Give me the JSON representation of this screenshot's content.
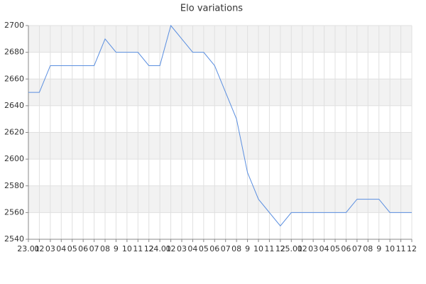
{
  "chart_data": {
    "type": "line",
    "title": "Elo variations",
    "categories": [
      "23.01",
      "02",
      "03",
      "04",
      "05",
      "06",
      "07",
      "08",
      "9",
      "10",
      "11",
      "12",
      "24.01",
      "02",
      "03",
      "04",
      "05",
      "06",
      "07",
      "08",
      "9",
      "10",
      "11",
      "12",
      "25.01",
      "02",
      "03",
      "04",
      "05",
      "06",
      "07",
      "08",
      "9",
      "10",
      "11",
      "12"
    ],
    "values": [
      2650,
      2650,
      2670,
      2670,
      2670,
      2670,
      2670,
      2690,
      2680,
      2680,
      2680,
      2670,
      2670,
      2700,
      2690,
      2680,
      2680,
      2670,
      2650,
      2630,
      2590,
      2570,
      2560,
      2550,
      2560,
      2560,
      2560,
      2560,
      2560,
      2560,
      2570,
      2570,
      2570,
      2560,
      2560,
      2560
    ],
    "color": "#5b8fe0",
    "ylim": [
      2540,
      2700
    ],
    "yticks": [
      2540,
      2560,
      2580,
      2600,
      2620,
      2640,
      2660,
      2680,
      2700
    ],
    "grid": true
  }
}
